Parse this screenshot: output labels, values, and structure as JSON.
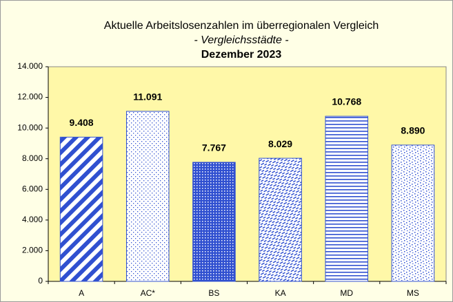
{
  "chart_data": {
    "type": "bar",
    "title": "Aktuelle Arbeitslosenzahlen im überregionalen Vergleich",
    "subtitle": "- Vergleichsstädte -",
    "period": "Dezember 2023",
    "categories": [
      "A",
      "AC*",
      "BS",
      "KA",
      "MD",
      "MS"
    ],
    "values": [
      9408,
      11091,
      7767,
      8029,
      10768,
      8890
    ],
    "value_labels": [
      "9.408",
      "11.091",
      "7.767",
      "8.029",
      "10.768",
      "8.890"
    ],
    "color": "#3050d0",
    "ylim": [
      0,
      14000
    ],
    "yticks": [
      {
        "value": 0,
        "label": "0"
      },
      {
        "value": 2000,
        "label": "2.000"
      },
      {
        "value": 4000,
        "label": "4.000"
      },
      {
        "value": 6000,
        "label": "6.000"
      },
      {
        "value": 8000,
        "label": "8.000"
      },
      {
        "value": 10000,
        "label": "10.000"
      },
      {
        "value": 12000,
        "label": "12.000"
      },
      {
        "value": 14000,
        "label": "14.000"
      }
    ],
    "grid": false
  }
}
